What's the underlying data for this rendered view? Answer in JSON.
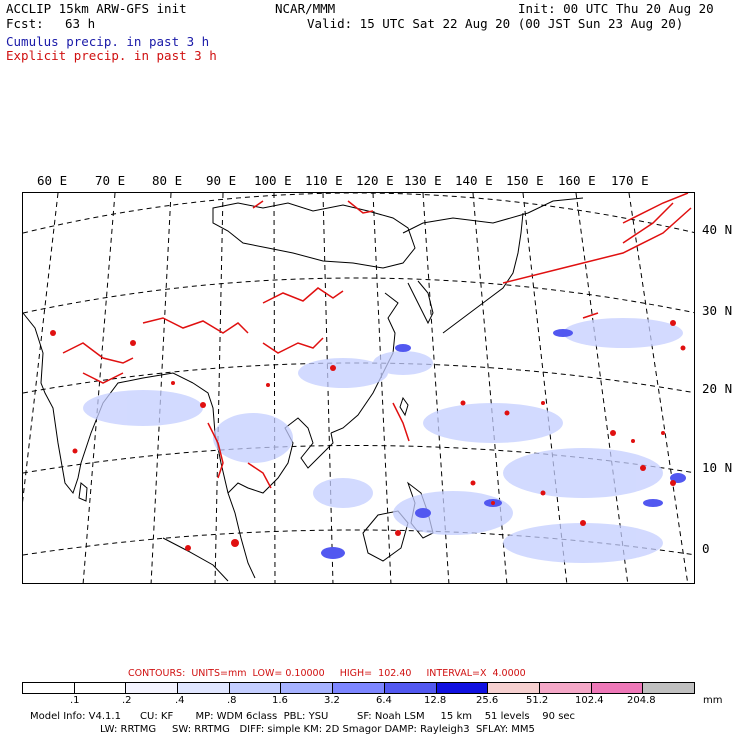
{
  "header": {
    "title_line1": "ACCLIP 15km ARW-GFS init",
    "fcst_label": "Fcst:",
    "fcst_value": "63 h",
    "org": "NCAR/MMM",
    "init": "Init: 00 UTC Thu 20 Aug 20",
    "valid": "Valid: 15 UTC Sat 22 Aug 20 (00 JST Sun 23 Aug 20)",
    "legend_cumulus": "Cumulus precip. in past 3 h",
    "legend_explicit": "Explicit precip. in past 3 h"
  },
  "axes": {
    "lon_labels": [
      "60 E",
      "70 E",
      "80 E",
      "90 E",
      "100 E",
      "110 E",
      "120 E",
      "130 E",
      "140 E",
      "150 E",
      "160 E",
      "170 E"
    ],
    "lat_labels": [
      "40 N",
      "30 N",
      "20 N",
      "10 N",
      "0"
    ]
  },
  "contours": {
    "text": "CONTOURS:  UNITS=mm  LOW= 0.10000     HIGH=  102.40     INTERVAL=X  4.0000"
  },
  "colorbar": {
    "colors": [
      "#ffffff",
      "#ffffff",
      "#f4f4ff",
      "#e0e6ff",
      "#c4ceff",
      "#a6b2ff",
      "#7d86ff",
      "#5258f0",
      "#1010e0",
      "#f6d0d0",
      "#f5a8c8",
      "#ee78b8",
      "#c0c0c0",
      "#707070",
      "#303030",
      "#c8a0ff"
    ],
    "labels": [
      ".1",
      ".2",
      ".4",
      ".8",
      "1.6",
      "3.2",
      "6.4",
      "12.8",
      "25.6",
      "51.2",
      "102.4",
      "204.8"
    ],
    "unit": "mm"
  },
  "model_info": {
    "line1": "Model Info: V4.1.1      CU: KF       MP: WDM 6class  PBL: YSU         SF: Noah LSM     15 km    51 levels    90 sec",
    "line2": "LW: RRTMG     SW: RRTMG   DIFF: simple KM: 2D Smagor DAMP: Rayleigh3  SFLAY: MM5"
  }
}
